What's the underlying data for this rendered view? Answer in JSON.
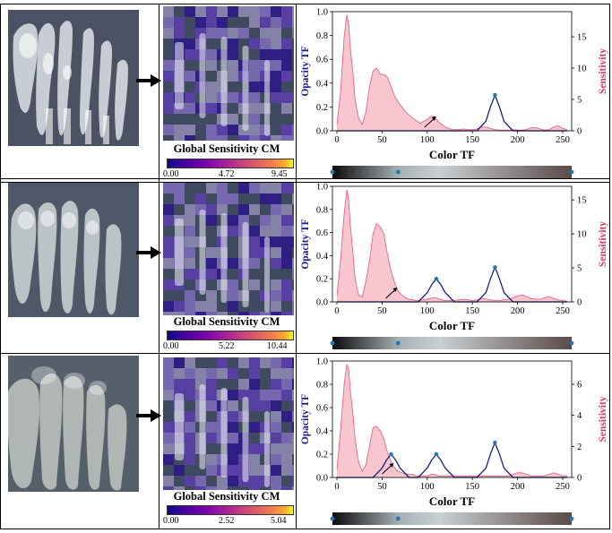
{
  "colors": {
    "opacity_line": "#1a237e",
    "sensitivity": "#e75480",
    "sensitivity_fill": "#f7c6cf",
    "border": "#000000"
  },
  "rows": [
    {
      "colormap": {
        "title": "Global Sensitivity CM",
        "ticks": [
          "0.00",
          "4.72",
          "9.45"
        ]
      },
      "chart_data": {
        "type": "area",
        "xlabel": "Color TF",
        "ylabel_left": "Opacity TF",
        "ylabel_right": "Sensitivity",
        "xlim": [
          0,
          255
        ],
        "x_ticks": [
          "0",
          "50",
          "100",
          "150",
          "200",
          "250"
        ],
        "ylim_left": [
          0.0,
          1.0
        ],
        "y_ticks_left": [
          "0.0",
          "0.2",
          "0.4",
          "0.6",
          "0.8",
          "1.0"
        ],
        "ylim_right": [
          0,
          19
        ],
        "y_ticks_right": [
          "0",
          "5",
          "10",
          "15"
        ],
        "series": [
          {
            "name": "Opacity TF",
            "axis": "left",
            "points": [
              [
                0,
                0
              ],
              [
                155,
                0
              ],
              [
                165,
                0.08
              ],
              [
                170,
                0.2
              ],
              [
                175,
                0.3
              ],
              [
                180,
                0.2
              ],
              [
                185,
                0.08
              ],
              [
                195,
                0
              ],
              [
                255,
                0
              ]
            ]
          },
          {
            "name": "Sensitivity",
            "axis": "right",
            "x": [
              0,
              4,
              8,
              11,
              13,
              15,
              18,
              20,
              24,
              28,
              32,
              36,
              40,
              44,
              48,
              52,
              56,
              60,
              64,
              68,
              72,
              76,
              80,
              84,
              88,
              92,
              96,
              100,
              104,
              108,
              112,
              116,
              120,
              125,
              130,
              135,
              140,
              145,
              150,
              155,
              160,
              165,
              170,
              175,
              180,
              185,
              190,
              195,
              200,
              205,
              210,
              215,
              220,
              225,
              230,
              235,
              240,
              245,
              250,
              255
            ],
            "y": [
              1,
              6,
              15,
              18.5,
              17,
              13,
              9,
              5,
              2,
              1,
              3,
              7,
              9.5,
              10,
              9,
              9,
              8.5,
              7,
              5.5,
              4.5,
              3.8,
              3,
              2.5,
              2,
              1.6,
              1.2,
              1.5,
              1.8,
              2.3,
              2.3,
              1.5,
              1,
              0.6,
              0.3,
              0.2,
              0.2,
              0.3,
              0.2,
              0.2,
              0.3,
              0.6,
              0.6,
              0.4,
              0.2,
              0.1,
              0.1,
              0.1,
              0.2,
              0.1,
              0.1,
              0.2,
              0.5,
              0.5,
              0.3,
              0.1,
              0.2,
              0.6,
              0.8,
              0.4,
              0.2
            ]
          }
        ],
        "tf_points_x": [
          175
        ],
        "annotation_x": [
          105
        ],
        "color_tf_points": [
          0,
          70,
          255
        ]
      }
    },
    {
      "colormap": {
        "title": "Global Sensitivity CM",
        "ticks": [
          "0.00",
          "5.22",
          "10.44"
        ]
      },
      "chart_data": {
        "type": "area",
        "xlabel": "Color TF",
        "ylabel_left": "Opacity TF",
        "ylabel_right": "Sensitivity",
        "xlim": [
          0,
          255
        ],
        "x_ticks": [
          "0",
          "50",
          "100",
          "150",
          "200",
          "250"
        ],
        "ylim_left": [
          0.0,
          1.0
        ],
        "y_ticks_left": [
          "0.0",
          "0.2",
          "0.4",
          "0.6",
          "0.8",
          "1.0"
        ],
        "ylim_right": [
          0,
          17
        ],
        "y_ticks_right": [
          "0",
          "5",
          "10",
          "15"
        ],
        "series": [
          {
            "name": "Opacity TF",
            "axis": "left",
            "points": [
              [
                0,
                0
              ],
              [
                90,
                0
              ],
              [
                100,
                0.08
              ],
              [
                105,
                0.15
              ],
              [
                110,
                0.2
              ],
              [
                115,
                0.15
              ],
              [
                120,
                0.08
              ],
              [
                130,
                0
              ],
              [
                155,
                0
              ],
              [
                165,
                0.08
              ],
              [
                170,
                0.2
              ],
              [
                175,
                0.3
              ],
              [
                180,
                0.2
              ],
              [
                185,
                0.08
              ],
              [
                195,
                0
              ],
              [
                255,
                0
              ]
            ]
          },
          {
            "name": "Sensitivity",
            "axis": "right",
            "x": [
              0,
              4,
              8,
              11,
              13,
              15,
              18,
              20,
              24,
              28,
              32,
              36,
              40,
              44,
              48,
              52,
              56,
              60,
              64,
              68,
              72,
              76,
              80,
              84,
              88,
              92,
              96,
              100,
              104,
              108,
              112,
              116,
              120,
              125,
              130,
              135,
              140,
              145,
              150,
              155,
              160,
              165,
              170,
              175,
              180,
              185,
              190,
              195,
              200,
              205,
              210,
              215,
              220,
              225,
              230,
              235,
              240,
              245,
              250,
              255
            ],
            "y": [
              1,
              6,
              13,
              16.5,
              15,
              11,
              7,
              3.5,
              1,
              0.7,
              3,
              6,
              10,
              11.5,
              11,
              10,
              7,
              4.5,
              2.8,
              1.5,
              1,
              0.6,
              0.4,
              0.3,
              0.2,
              0.2,
              0.3,
              0.4,
              0.5,
              0.6,
              0.5,
              0.3,
              0.2,
              0.2,
              0.2,
              0.3,
              0.4,
              0.3,
              0.2,
              0.3,
              0.5,
              0.4,
              0.3,
              0.2,
              0.2,
              0.3,
              0.4,
              0.6,
              0.9,
              1,
              0.8,
              0.5,
              0.4,
              0.4,
              0.6,
              0.8,
              0.5,
              0.3,
              0.2,
              0.1
            ]
          }
        ],
        "tf_points_x": [
          110,
          175
        ],
        "annotation_x": [
          62
        ],
        "color_tf_points": [
          0,
          70,
          255
        ]
      }
    },
    {
      "colormap": {
        "title": "Global Sensitivity CM",
        "ticks": [
          "0.00",
          "2.52",
          "5.04"
        ]
      },
      "chart_data": {
        "type": "area",
        "xlabel": "Color TF",
        "ylabel_left": "Opacity TF",
        "ylabel_right": "Sensitivity",
        "xlim": [
          0,
          255
        ],
        "x_ticks": [
          "0",
          "50",
          "100",
          "150",
          "200",
          "250"
        ],
        "ylim_left": [
          0.0,
          1.0
        ],
        "y_ticks_left": [
          "0.0",
          "0.2",
          "0.4",
          "0.6",
          "0.8",
          "1.0"
        ],
        "ylim_right": [
          0,
          7.5
        ],
        "y_ticks_right": [
          "0",
          "2",
          "4",
          "6"
        ],
        "series": [
          {
            "name": "Opacity TF",
            "axis": "left",
            "points": [
              [
                0,
                0
              ],
              [
                40,
                0
              ],
              [
                50,
                0.08
              ],
              [
                55,
                0.15
              ],
              [
                60,
                0.2
              ],
              [
                65,
                0.15
              ],
              [
                70,
                0.08
              ],
              [
                80,
                0
              ],
              [
                90,
                0
              ],
              [
                100,
                0.08
              ],
              [
                105,
                0.15
              ],
              [
                110,
                0.2
              ],
              [
                115,
                0.15
              ],
              [
                120,
                0.08
              ],
              [
                130,
                0
              ],
              [
                155,
                0
              ],
              [
                165,
                0.08
              ],
              [
                170,
                0.2
              ],
              [
                175,
                0.3
              ],
              [
                180,
                0.2
              ],
              [
                185,
                0.08
              ],
              [
                195,
                0
              ],
              [
                255,
                0
              ]
            ]
          },
          {
            "name": "Sensitivity",
            "axis": "right",
            "x": [
              0,
              4,
              8,
              11,
              13,
              15,
              18,
              20,
              24,
              28,
              32,
              36,
              40,
              44,
              48,
              52,
              56,
              60,
              64,
              68,
              72,
              76,
              80,
              84,
              88,
              92,
              96,
              100,
              104,
              108,
              112,
              116,
              120,
              125,
              130,
              135,
              140,
              145,
              150,
              155,
              160,
              165,
              170,
              175,
              180,
              185,
              190,
              195,
              200,
              205,
              210,
              215,
              220,
              225,
              230,
              235,
              240,
              245,
              250,
              255
            ],
            "y": [
              0.5,
              3,
              6,
              7.3,
              7,
              5.5,
              4,
              2.5,
              1,
              0.4,
              0.8,
              2,
              3.2,
              3.3,
              3,
              2.5,
              1.6,
              1,
              0.6,
              0.4,
              0.3,
              0.2,
              0.2,
              0.2,
              0.1,
              0.1,
              0.1,
              0.1,
              0.2,
              0.2,
              0.1,
              0.1,
              0.1,
              0.1,
              0.1,
              0.1,
              0.1,
              0.1,
              0.1,
              0.1,
              0.1,
              0.1,
              0.1,
              0.1,
              0.1,
              0.1,
              0.1,
              0.2,
              0.3,
              0.3,
              0.2,
              0.1,
              0.1,
              0.1,
              0.1,
              0.2,
              0.3,
              0.2,
              0.1,
              0.1
            ]
          }
        ],
        "tf_points_x": [
          60,
          110,
          175
        ],
        "annotation_x": [
          58
        ],
        "color_tf_points": [
          0,
          70,
          255
        ]
      }
    }
  ]
}
